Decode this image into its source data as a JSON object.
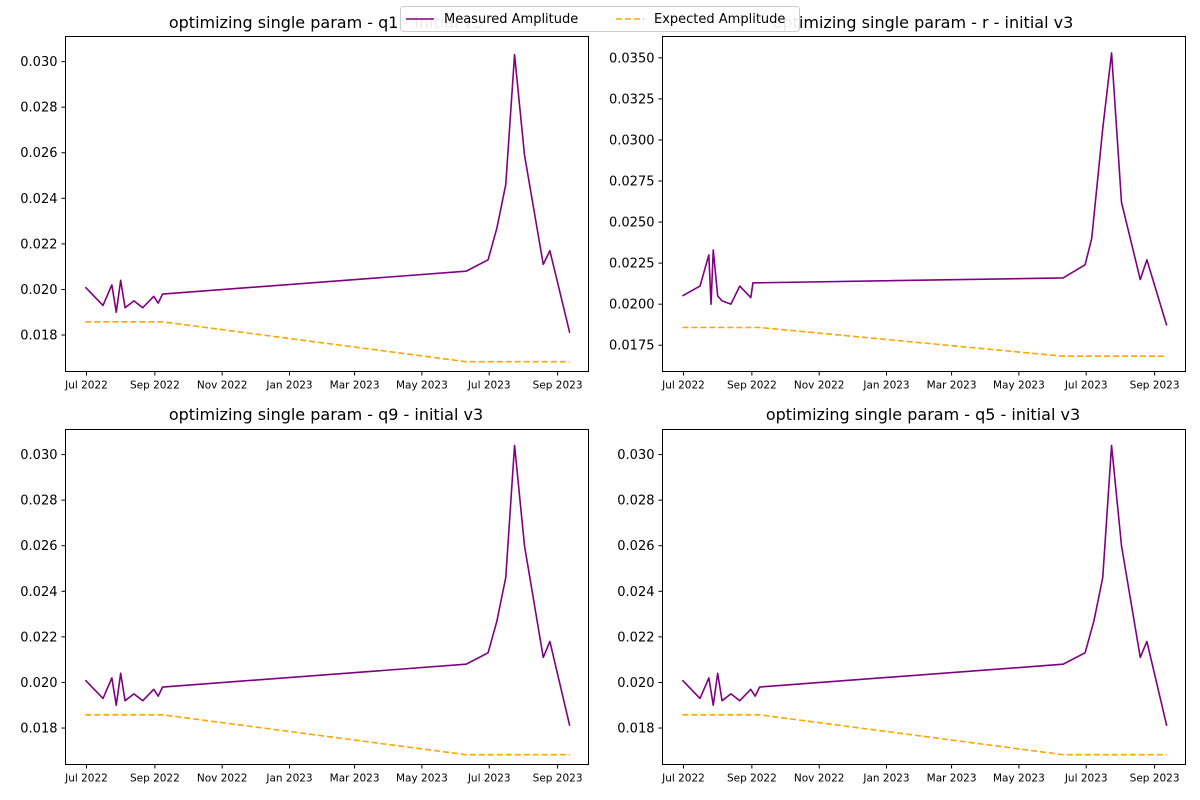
{
  "figure": {
    "legend": {
      "placement": "top-center",
      "entries": [
        {
          "label": "Measured Amplitude",
          "color": "#800080",
          "style": "solid"
        },
        {
          "label": "Expected Amplitude",
          "color": "#ffa500",
          "style": "dashed"
        }
      ]
    }
  },
  "chart_data": [
    {
      "type": "line",
      "title": "optimizing single param - q1 - initial v3",
      "x_type": "date",
      "xlim": [
        "2022-06-12",
        "2023-09-29"
      ],
      "ylim": [
        0.0164,
        0.0311
      ],
      "xticks": [
        "2022-07-01",
        "2022-09-01",
        "2022-11-01",
        "2023-01-01",
        "2023-03-01",
        "2023-05-01",
        "2023-07-01",
        "2023-09-01"
      ],
      "xtick_labels": [
        "Jul 2022",
        "Sep 2022",
        "Nov 2022",
        "Jan 2023",
        "Mar 2023",
        "May 2023",
        "Jul 2023",
        "Sep 2023"
      ],
      "yticks": [
        0.018,
        0.02,
        0.022,
        0.024,
        0.026,
        0.028,
        0.03
      ],
      "ytick_labels": [
        "0.018",
        "0.020",
        "0.022",
        "0.024",
        "0.026",
        "0.028",
        "0.030"
      ],
      "grid": false,
      "series": [
        {
          "name": "Measured Amplitude",
          "color": "#800080",
          "style": "solid",
          "x": [
            "2022-06-30",
            "2022-07-16",
            "2022-07-24",
            "2022-07-28",
            "2022-08-01",
            "2022-08-05",
            "2022-08-13",
            "2022-08-21",
            "2022-08-31",
            "2022-09-04",
            "2022-09-08",
            "2023-06-10",
            "2023-06-30",
            "2023-07-08",
            "2023-07-16",
            "2023-07-24",
            "2023-08-02",
            "2023-08-19",
            "2023-08-25",
            "2023-09-12"
          ],
          "y": [
            0.0201,
            0.0193,
            0.0202,
            0.019,
            0.0204,
            0.0192,
            0.0195,
            0.0192,
            0.0197,
            0.0194,
            0.0198,
            0.0208,
            0.0213,
            0.0227,
            0.0246,
            0.0303,
            0.0259,
            0.0211,
            0.0217,
            0.0181
          ]
        },
        {
          "name": "Expected Amplitude",
          "color": "#ffa500",
          "style": "dashed",
          "x": [
            "2022-06-30",
            "2022-09-08",
            "2023-06-10",
            "2023-09-12"
          ],
          "y": [
            0.01858,
            0.01858,
            0.01683,
            0.01683
          ]
        }
      ]
    },
    {
      "type": "line",
      "title": "optimizing single param - r - initial v3",
      "x_type": "date",
      "xlim": [
        "2022-06-12",
        "2023-09-29"
      ],
      "ylim": [
        0.0159,
        0.0363
      ],
      "xticks": [
        "2022-07-01",
        "2022-09-01",
        "2022-11-01",
        "2023-01-01",
        "2023-03-01",
        "2023-05-01",
        "2023-07-01",
        "2023-09-01"
      ],
      "xtick_labels": [
        "Jul 2022",
        "Sep 2022",
        "Nov 2022",
        "Jan 2023",
        "Mar 2023",
        "May 2023",
        "Jul 2023",
        "Sep 2023"
      ],
      "yticks": [
        0.0175,
        0.02,
        0.0225,
        0.025,
        0.0275,
        0.03,
        0.0325,
        0.035
      ],
      "ytick_labels": [
        "0.0175",
        "0.0200",
        "0.0225",
        "0.0250",
        "0.0275",
        "0.0300",
        "0.0325",
        "0.0350"
      ],
      "grid": false,
      "series": [
        {
          "name": "Measured Amplitude",
          "color": "#800080",
          "style": "solid",
          "x": [
            "2022-06-30",
            "2022-07-16",
            "2022-07-24",
            "2022-07-26",
            "2022-07-28",
            "2022-08-01",
            "2022-08-05",
            "2022-08-13",
            "2022-08-21",
            "2022-08-31",
            "2022-09-02",
            "2022-09-06",
            "2023-06-10",
            "2023-06-30",
            "2023-07-06",
            "2023-07-16",
            "2023-07-24",
            "2023-08-02",
            "2023-08-19",
            "2023-08-25",
            "2023-09-12"
          ],
          "y": [
            0.0205,
            0.0211,
            0.023,
            0.02,
            0.0233,
            0.0205,
            0.0202,
            0.02,
            0.0211,
            0.0204,
            0.0213,
            0.0213,
            0.0216,
            0.0224,
            0.024,
            0.0307,
            0.0353,
            0.0262,
            0.0215,
            0.0227,
            0.0187
          ]
        },
        {
          "name": "Expected Amplitude",
          "color": "#ffa500",
          "style": "dashed",
          "x": [
            "2022-06-30",
            "2022-09-08",
            "2023-06-10",
            "2023-09-12"
          ],
          "y": [
            0.01858,
            0.01858,
            0.01683,
            0.01683
          ]
        }
      ]
    },
    {
      "type": "line",
      "title": "optimizing single param - q9 - initial v3",
      "x_type": "date",
      "xlim": [
        "2022-06-12",
        "2023-09-29"
      ],
      "ylim": [
        0.0164,
        0.0311
      ],
      "xticks": [
        "2022-07-01",
        "2022-09-01",
        "2022-11-01",
        "2023-01-01",
        "2023-03-01",
        "2023-05-01",
        "2023-07-01",
        "2023-09-01"
      ],
      "xtick_labels": [
        "Jul 2022",
        "Sep 2022",
        "Nov 2022",
        "Jan 2023",
        "Mar 2023",
        "May 2023",
        "Jul 2023",
        "Sep 2023"
      ],
      "yticks": [
        0.018,
        0.02,
        0.022,
        0.024,
        0.026,
        0.028,
        0.03
      ],
      "ytick_labels": [
        "0.018",
        "0.020",
        "0.022",
        "0.024",
        "0.026",
        "0.028",
        "0.030"
      ],
      "grid": false,
      "series": [
        {
          "name": "Measured Amplitude",
          "color": "#800080",
          "style": "solid",
          "x": [
            "2022-06-30",
            "2022-07-16",
            "2022-07-24",
            "2022-07-28",
            "2022-08-01",
            "2022-08-05",
            "2022-08-13",
            "2022-08-21",
            "2022-08-31",
            "2022-09-04",
            "2022-09-08",
            "2023-06-10",
            "2023-06-30",
            "2023-07-08",
            "2023-07-16",
            "2023-07-24",
            "2023-08-02",
            "2023-08-19",
            "2023-08-25",
            "2023-09-12"
          ],
          "y": [
            0.0201,
            0.0193,
            0.0202,
            0.019,
            0.0204,
            0.0192,
            0.0195,
            0.0192,
            0.0197,
            0.0194,
            0.0198,
            0.0208,
            0.0213,
            0.0227,
            0.0246,
            0.0304,
            0.026,
            0.0211,
            0.0218,
            0.0181
          ]
        },
        {
          "name": "Expected Amplitude",
          "color": "#ffa500",
          "style": "dashed",
          "x": [
            "2022-06-30",
            "2022-09-08",
            "2023-06-10",
            "2023-09-12"
          ],
          "y": [
            0.01858,
            0.01858,
            0.01683,
            0.01683
          ]
        }
      ]
    },
    {
      "type": "line",
      "title": "optimizing single param - q5 - initial v3",
      "x_type": "date",
      "xlim": [
        "2022-06-12",
        "2023-09-29"
      ],
      "ylim": [
        0.0164,
        0.0311
      ],
      "xticks": [
        "2022-07-01",
        "2022-09-01",
        "2022-11-01",
        "2023-01-01",
        "2023-03-01",
        "2023-05-01",
        "2023-07-01",
        "2023-09-01"
      ],
      "xtick_labels": [
        "Jul 2022",
        "Sep 2022",
        "Nov 2022",
        "Jan 2023",
        "Mar 2023",
        "May 2023",
        "Jul 2023",
        "Sep 2023"
      ],
      "yticks": [
        0.018,
        0.02,
        0.022,
        0.024,
        0.026,
        0.028,
        0.03
      ],
      "ytick_labels": [
        "0.018",
        "0.020",
        "0.022",
        "0.024",
        "0.026",
        "0.028",
        "0.030"
      ],
      "grid": false,
      "series": [
        {
          "name": "Measured Amplitude",
          "color": "#800080",
          "style": "solid",
          "x": [
            "2022-06-30",
            "2022-07-16",
            "2022-07-24",
            "2022-07-28",
            "2022-08-01",
            "2022-08-05",
            "2022-08-13",
            "2022-08-21",
            "2022-08-31",
            "2022-09-04",
            "2022-09-08",
            "2023-06-10",
            "2023-06-30",
            "2023-07-08",
            "2023-07-16",
            "2023-07-24",
            "2023-08-02",
            "2023-08-19",
            "2023-08-25",
            "2023-09-12"
          ],
          "y": [
            0.0201,
            0.0193,
            0.0202,
            0.019,
            0.0204,
            0.0192,
            0.0195,
            0.0192,
            0.0197,
            0.0194,
            0.0198,
            0.0208,
            0.0213,
            0.0227,
            0.0246,
            0.0304,
            0.026,
            0.0211,
            0.0218,
            0.0181
          ]
        },
        {
          "name": "Expected Amplitude",
          "color": "#ffa500",
          "style": "dashed",
          "x": [
            "2022-06-30",
            "2022-09-08",
            "2023-06-10",
            "2023-09-12"
          ],
          "y": [
            0.01858,
            0.01858,
            0.01683,
            0.01683
          ]
        }
      ]
    }
  ]
}
